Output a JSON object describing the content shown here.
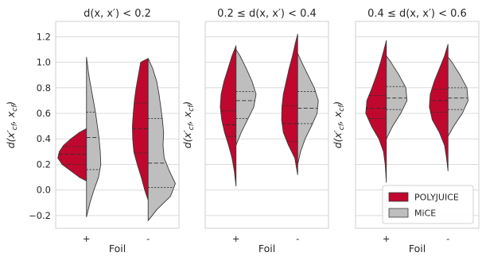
{
  "chart_data": {
    "type": "violin",
    "colors": {
      "POLYJUICE": "#c0082e",
      "MiCE": "#bebebe",
      "grid": "#dcdcdc",
      "edge": "#3a3a3a"
    },
    "legend": {
      "placement": "lower-right of third panel",
      "entries": [
        "POLYJUICE",
        "MiCE"
      ]
    },
    "ylim": [
      -0.3,
      1.32
    ],
    "yticks": [
      -0.2,
      0.0,
      0.2,
      0.4,
      0.6,
      0.8,
      1.0,
      1.2
    ],
    "ytick_labels": [
      "−0.2",
      "0.0",
      "0.2",
      "0.4",
      "0.6",
      "0.8",
      "1.0",
      "1.2"
    ],
    "categories": [
      "+",
      "-"
    ],
    "xlabel": "Foil",
    "ylabel": "d(x′cf, xcf)",
    "ylabel_parts": {
      "main": "d(x′",
      "sub1": "cf",
      "mid": ", x",
      "sub2": "cf",
      "end": ")"
    },
    "panels": [
      {
        "title": "d(x, x′) < 0.2",
        "title_parts": {
          "pre": "d(x, x′) < 0.2"
        },
        "show_yticks": true,
        "violins": [
          {
            "category": "+",
            "POLYJUICE": {
              "y": [
                0.07,
                0.1,
                0.15,
                0.2,
                0.25,
                0.3,
                0.35,
                0.4,
                0.45,
                0.48
              ],
              "w": [
                0.0,
                0.25,
                0.55,
                0.85,
                1.0,
                0.95,
                0.8,
                0.55,
                0.25,
                0.0
              ],
              "quartiles": [
                0.2,
                0.28,
                0.34
              ]
            },
            "MiCE": {
              "y": [
                -0.21,
                -0.1,
                0.0,
                0.1,
                0.2,
                0.3,
                0.4,
                0.5,
                0.6,
                0.7,
                0.8,
                0.9,
                1.04
              ],
              "w": [
                0.0,
                0.12,
                0.26,
                0.42,
                0.5,
                0.48,
                0.44,
                0.38,
                0.32,
                0.24,
                0.16,
                0.08,
                0.0
              ],
              "quartiles": [
                0.16,
                0.41,
                0.61
              ]
            }
          },
          {
            "category": "-",
            "POLYJUICE": {
              "y": [
                -0.08,
                0.0,
                0.1,
                0.2,
                0.3,
                0.4,
                0.5,
                0.6,
                0.7,
                0.8,
                0.9,
                1.0,
                1.03
              ],
              "w": [
                0.0,
                0.12,
                0.24,
                0.38,
                0.5,
                0.54,
                0.55,
                0.52,
                0.48,
                0.42,
                0.34,
                0.26,
                0.0
              ],
              "quartiles": [
                0.29,
                0.48,
                0.68
              ]
            },
            "MiCE": {
              "y": [
                -0.24,
                -0.15,
                -0.05,
                0.05,
                0.15,
                0.25,
                0.35,
                0.45,
                0.55,
                0.65,
                0.75,
                0.85,
                0.95,
                1.03
              ],
              "w": [
                0.0,
                0.32,
                0.78,
                0.95,
                0.74,
                0.56,
                0.52,
                0.54,
                0.5,
                0.44,
                0.38,
                0.3,
                0.16,
                0.0
              ],
              "quartiles": [
                0.02,
                0.21,
                0.56
              ]
            }
          }
        ]
      },
      {
        "title": "0.2 ≤ d(x, x′) < 0.4",
        "show_yticks": false,
        "violins": [
          {
            "category": "+",
            "POLYJUICE": {
              "y": [
                0.03,
                0.15,
                0.25,
                0.35,
                0.45,
                0.55,
                0.65,
                0.75,
                0.85,
                0.95,
                1.05,
                1.13
              ],
              "w": [
                0.0,
                0.06,
                0.14,
                0.26,
                0.4,
                0.5,
                0.55,
                0.52,
                0.42,
                0.28,
                0.14,
                0.0
              ],
              "quartiles": [
                0.42,
                0.51,
                0.62
              ]
            },
            "MiCE": {
              "y": [
                0.35,
                0.45,
                0.55,
                0.65,
                0.75,
                0.85,
                0.95,
                1.05,
                1.1
              ],
              "w": [
                0.0,
                0.18,
                0.4,
                0.62,
                0.7,
                0.56,
                0.36,
                0.14,
                0.0
              ],
              "quartiles": [
                0.56,
                0.7,
                0.77
              ]
            }
          },
          {
            "category": "-",
            "POLYJUICE": {
              "y": [
                0.12,
                0.25,
                0.35,
                0.45,
                0.55,
                0.65,
                0.75,
                0.85,
                0.95,
                1.05,
                1.15,
                1.22
              ],
              "w": [
                0.0,
                0.1,
                0.32,
                0.5,
                0.56,
                0.55,
                0.5,
                0.4,
                0.3,
                0.18,
                0.08,
                0.0
              ],
              "quartiles": [
                0.38,
                0.52,
                0.66
              ]
            },
            "MiCE": {
              "y": [
                0.2,
                0.3,
                0.4,
                0.5,
                0.6,
                0.7,
                0.8,
                0.9,
                1.0,
                1.07
              ],
              "w": [
                0.0,
                0.1,
                0.26,
                0.48,
                0.68,
                0.72,
                0.58,
                0.36,
                0.14,
                0.0
              ],
              "quartiles": [
                0.52,
                0.64,
                0.77
              ]
            }
          }
        ]
      },
      {
        "title": "0.4 ≤ d(x, x′) < 0.6",
        "show_yticks": false,
        "violins": [
          {
            "category": "+",
            "POLYJUICE": {
              "y": [
                0.06,
                0.2,
                0.3,
                0.4,
                0.5,
                0.6,
                0.7,
                0.8,
                0.9,
                1.0,
                1.1,
                1.17
              ],
              "w": [
                0.0,
                0.04,
                0.1,
                0.26,
                0.52,
                0.72,
                0.68,
                0.5,
                0.34,
                0.2,
                0.08,
                0.0
              ],
              "quartiles": [
                0.56,
                0.64,
                0.74
              ]
            },
            "MiCE": {
              "y": [
                0.4,
                0.5,
                0.6,
                0.7,
                0.8,
                0.9,
                1.0,
                1.05
              ],
              "w": [
                0.0,
                0.22,
                0.5,
                0.72,
                0.68,
                0.44,
                0.16,
                0.0
              ],
              "quartiles": [
                0.63,
                0.72,
                0.81
              ]
            }
          },
          {
            "category": "-",
            "POLYJUICE": {
              "y": [
                0.15,
                0.25,
                0.35,
                0.45,
                0.55,
                0.65,
                0.75,
                0.85,
                0.95,
                1.05,
                1.14
              ],
              "w": [
                0.0,
                0.05,
                0.12,
                0.3,
                0.55,
                0.65,
                0.62,
                0.48,
                0.3,
                0.12,
                0.0
              ],
              "quartiles": [
                0.61,
                0.7,
                0.79
              ]
            },
            "MiCE": {
              "y": [
                0.42,
                0.5,
                0.6,
                0.7,
                0.8,
                0.9,
                1.0,
                1.04
              ],
              "w": [
                0.0,
                0.2,
                0.5,
                0.7,
                0.66,
                0.42,
                0.14,
                0.0
              ],
              "quartiles": [
                0.63,
                0.72,
                0.8
              ]
            }
          }
        ]
      }
    ]
  }
}
